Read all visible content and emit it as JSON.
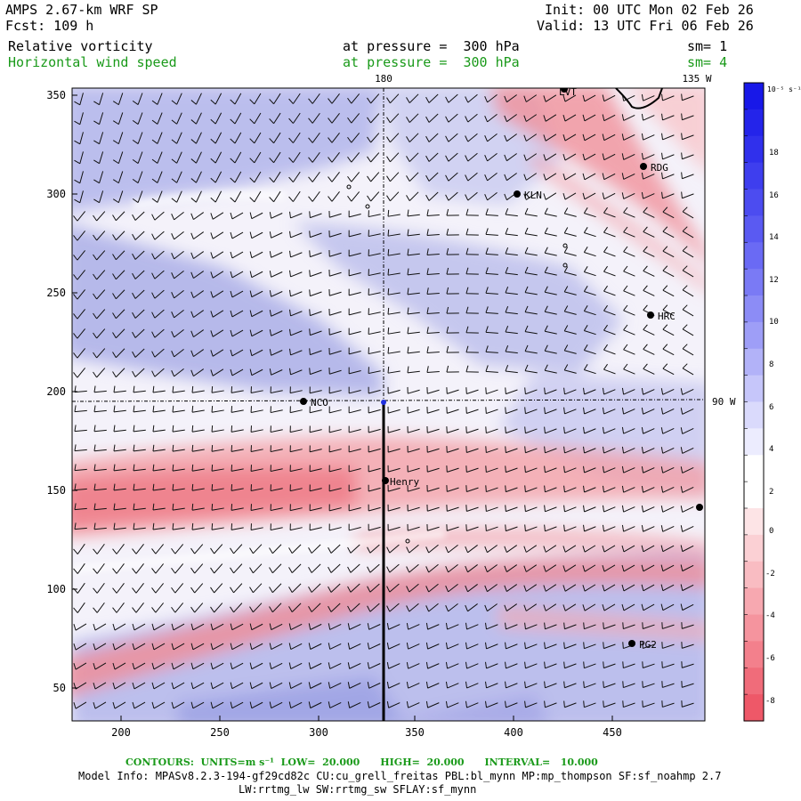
{
  "header": {
    "model": "AMPS 2.67-km WRF SP",
    "forecast": "Fcst: 109 h",
    "init": "Init: 00 UTC Mon 02 Feb 26",
    "valid": "Valid: 13 UTC Fri 06 Feb 26",
    "field1": "Relative vorticity",
    "field1_level": "at pressure =  300 hPa",
    "field1_sm": "sm= 1",
    "field2": "Horizontal wind speed",
    "field2_level": "at pressure =  300 hPa",
    "field2_sm": "sm= 4"
  },
  "map": {
    "x_ticks": [
      "200",
      "250",
      "300",
      "350",
      "400",
      "450"
    ],
    "y_ticks": [
      "350",
      "300",
      "250",
      "200",
      "150",
      "100",
      "50"
    ],
    "meridian_180": "180",
    "meridian_135w": "135 W",
    "meridian_90w": "90 W",
    "stations": [
      {
        "id": "LVT",
        "label": "LVT"
      },
      {
        "id": "RDG",
        "label": "RDG"
      },
      {
        "id": "KLN",
        "label": "KLN"
      },
      {
        "id": "HRC",
        "label": "HRC"
      },
      {
        "id": "NCO",
        "label": "NCO"
      },
      {
        "id": "Henry",
        "label": "Henry"
      },
      {
        "id": "PG2",
        "label": "PG2"
      },
      {
        "id": "EDGE",
        "label": ""
      }
    ],
    "colors": {
      "positive": "#2030e0",
      "negative": "#f06070",
      "cross_section_line": "#000000"
    }
  },
  "colorbar": {
    "units": "10⁻⁵ s⁻¹",
    "labels": [
      "18",
      "16",
      "14",
      "12",
      "10",
      "8",
      "6",
      "4",
      "2",
      "0",
      "-2",
      "-4",
      "-6",
      "-8"
    ]
  },
  "footer": {
    "contours": "CONTOURS:  UNITS=m s⁻¹  LOW=  20.000      HIGH=  20.000      INTERVAL=   10.000",
    "model_info": "Model Info: MPASv8.2.3-194-gf29cd82c CU:cu_grell_freitas PBL:bl_mynn MP:mp_thompson SF:sf_noahmp 2.7",
    "model_info2": "LW:rrtmg_lw SW:rrtmg_sw SFLAY:sf_mynn"
  }
}
